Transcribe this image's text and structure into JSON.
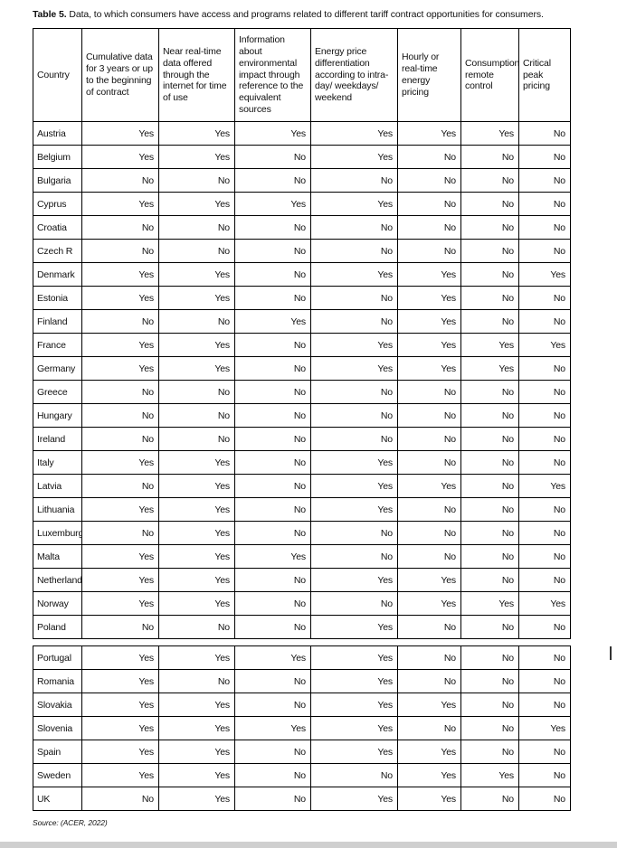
{
  "caption": {
    "label": "Table 5.",
    "text": " Data, to which consumers have access and programs related to different tariff contract opportunities for consumers."
  },
  "source": "Source: (ACER, 2022)",
  "table": {
    "columns": [
      "Country",
      "Cumulative data for 3 years or up to the beginning of contract",
      "Near real-time data offered through the internet for time of use",
      "Information about environmental impact through reference to the equivalent sources",
      "Energy price differentiation according to intra-day/ weekdays/ weekend",
      "Hourly or real-time energy pricing",
      "Consumption remote control",
      "Critical peak pricing"
    ],
    "block1": [
      {
        "country": "Austria",
        "values": [
          "Yes",
          "Yes",
          "Yes",
          "Yes",
          "Yes",
          "Yes",
          "No"
        ]
      },
      {
        "country": "Belgium",
        "values": [
          "Yes",
          "Yes",
          "No",
          "Yes",
          "No",
          "No",
          "No"
        ]
      },
      {
        "country": "Bulgaria",
        "values": [
          "No",
          "No",
          "No",
          "No",
          "No",
          "No",
          "No"
        ]
      },
      {
        "country": "Cyprus",
        "values": [
          "Yes",
          "Yes",
          "Yes",
          "Yes",
          "No",
          "No",
          "No"
        ]
      },
      {
        "country": "Croatia",
        "values": [
          "No",
          "No",
          "No",
          "No",
          "No",
          "No",
          "No"
        ]
      },
      {
        "country": "Czech R",
        "values": [
          "No",
          "No",
          "No",
          "No",
          "No",
          "No",
          "No"
        ]
      },
      {
        "country": "Denmark",
        "values": [
          "Yes",
          "Yes",
          "No",
          "Yes",
          "Yes",
          "No",
          "Yes"
        ]
      },
      {
        "country": "Estonia",
        "values": [
          "Yes",
          "Yes",
          "No",
          "No",
          "Yes",
          "No",
          "No"
        ]
      },
      {
        "country": "Finland",
        "values": [
          "No",
          "No",
          "Yes",
          "No",
          "Yes",
          "No",
          "No"
        ]
      },
      {
        "country": "France",
        "values": [
          "Yes",
          "Yes",
          "No",
          "Yes",
          "Yes",
          "Yes",
          "Yes"
        ]
      },
      {
        "country": "Germany",
        "values": [
          "Yes",
          "Yes",
          "No",
          "Yes",
          "Yes",
          "Yes",
          "No"
        ]
      },
      {
        "country": "Greece",
        "values": [
          "No",
          "No",
          "No",
          "No",
          "No",
          "No",
          "No"
        ]
      },
      {
        "country": "Hungary",
        "values": [
          "No",
          "No",
          "No",
          "No",
          "No",
          "No",
          "No"
        ]
      },
      {
        "country": "Ireland",
        "values": [
          "No",
          "No",
          "No",
          "No",
          "No",
          "No",
          "No"
        ]
      },
      {
        "country": "Italy",
        "values": [
          "Yes",
          "Yes",
          "No",
          "Yes",
          "No",
          "No",
          "No"
        ]
      },
      {
        "country": "Latvia",
        "values": [
          "No",
          "Yes",
          "No",
          "Yes",
          "Yes",
          "No",
          "Yes"
        ]
      },
      {
        "country": "Lithuania",
        "values": [
          "Yes",
          "Yes",
          "No",
          "Yes",
          "No",
          "No",
          "No"
        ]
      },
      {
        "country": "Luxemburg",
        "values": [
          "No",
          "Yes",
          "No",
          "No",
          "No",
          "No",
          "No"
        ]
      },
      {
        "country": "Malta",
        "values": [
          "Yes",
          "Yes",
          "Yes",
          "No",
          "No",
          "No",
          "No"
        ]
      },
      {
        "country": "Netherlands",
        "values": [
          "Yes",
          "Yes",
          "No",
          "Yes",
          "Yes",
          "No",
          "No"
        ]
      },
      {
        "country": "Norway",
        "values": [
          "Yes",
          "Yes",
          "No",
          "No",
          "Yes",
          "Yes",
          "Yes"
        ]
      },
      {
        "country": "Poland",
        "values": [
          "No",
          "No",
          "No",
          "Yes",
          "No",
          "No",
          "No"
        ]
      }
    ],
    "block2": [
      {
        "country": "Portugal",
        "values": [
          "Yes",
          "Yes",
          "Yes",
          "Yes",
          "No",
          "No",
          "No"
        ]
      },
      {
        "country": "Romania",
        "values": [
          "Yes",
          "No",
          "No",
          "Yes",
          "No",
          "No",
          "No"
        ]
      },
      {
        "country": "Slovakia",
        "values": [
          "Yes",
          "Yes",
          "No",
          "Yes",
          "Yes",
          "No",
          "No"
        ]
      },
      {
        "country": "Slovenia",
        "values": [
          "Yes",
          "Yes",
          "Yes",
          "Yes",
          "No",
          "No",
          "Yes"
        ]
      },
      {
        "country": "Spain",
        "values": [
          "Yes",
          "Yes",
          "No",
          "Yes",
          "Yes",
          "No",
          "No"
        ]
      },
      {
        "country": "Sweden",
        "values": [
          "Yes",
          "Yes",
          "No",
          "No",
          "Yes",
          "Yes",
          "No"
        ]
      },
      {
        "country": "UK",
        "values": [
          "No",
          "Yes",
          "No",
          "Yes",
          "Yes",
          "No",
          "No"
        ]
      }
    ]
  }
}
